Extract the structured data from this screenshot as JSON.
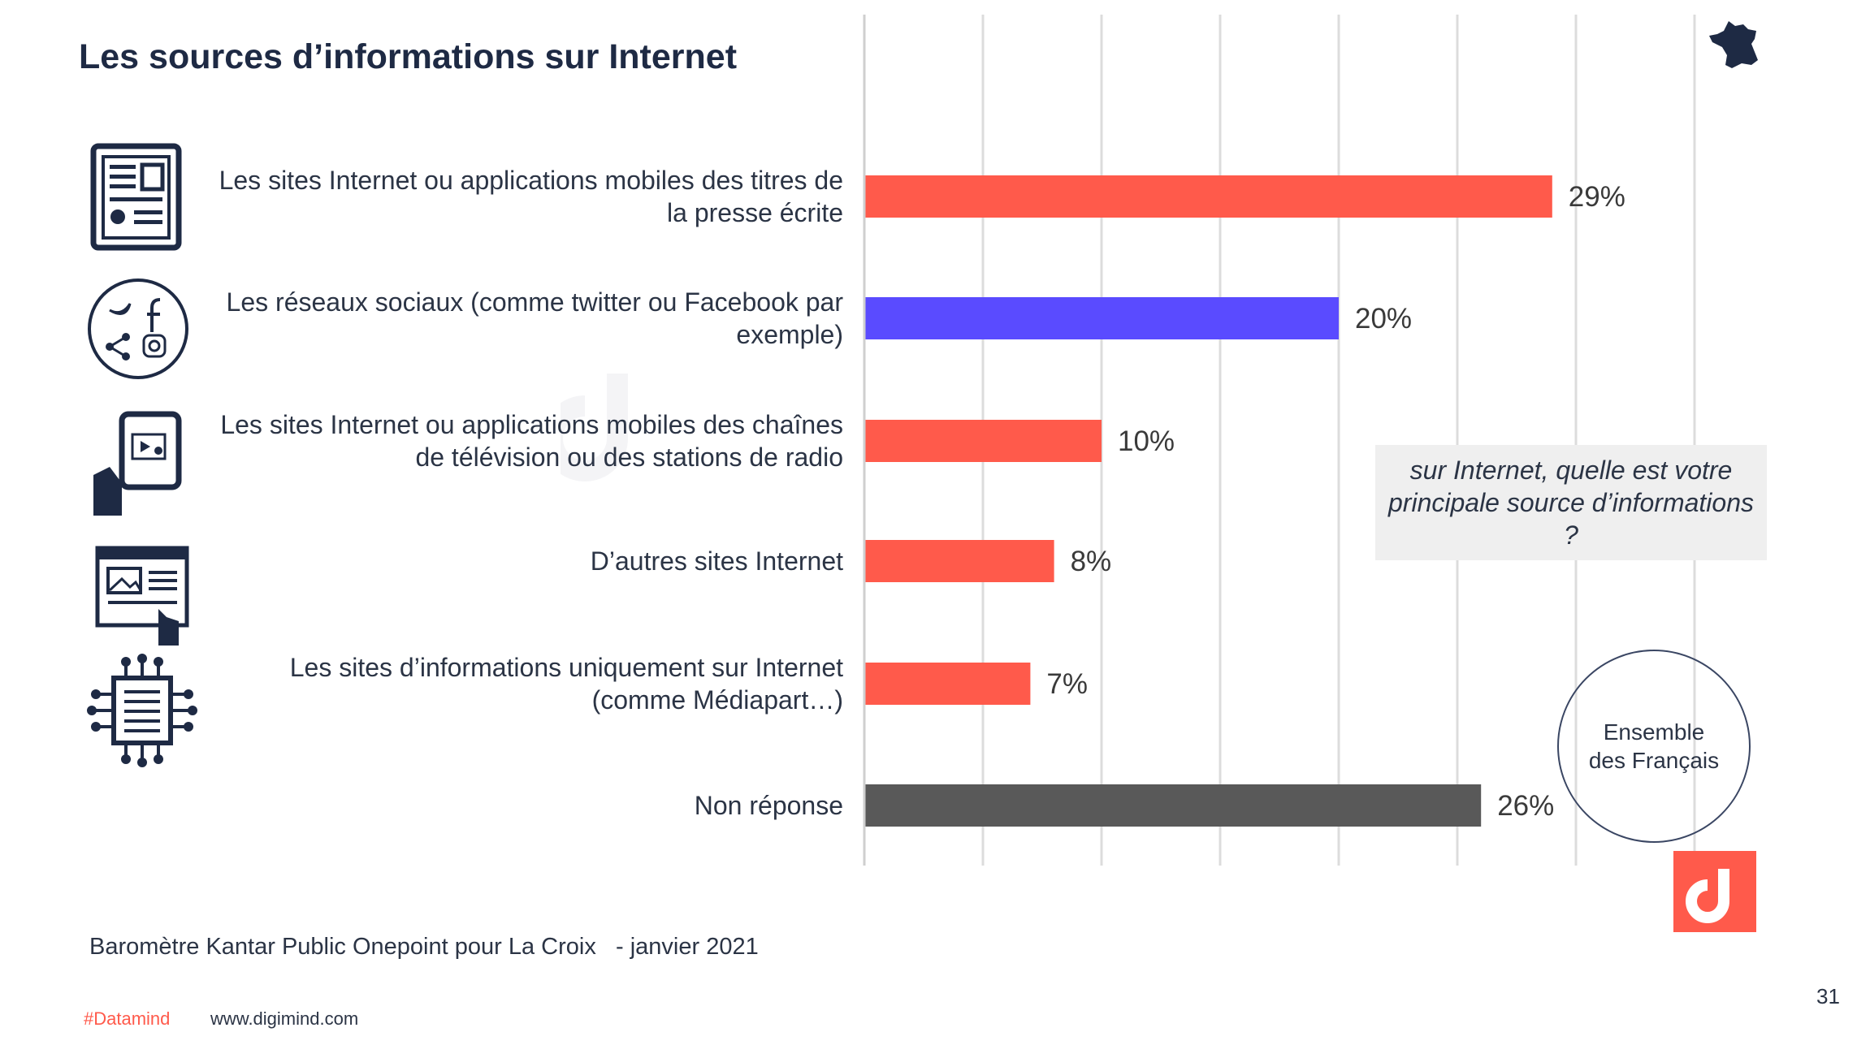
{
  "title": "Les sources d’informations sur Internet",
  "question": "sur Internet, quelle est votre principale source d’informations ?",
  "population": "Ensemble des Français",
  "source": "Baromètre Kantar Public Onepoint pour La Croix   - janvier 2021",
  "footer": {
    "hashtag": "#Datamind",
    "website": "www.digimind.com"
  },
  "page_number": "31",
  "watermark": "digimind",
  "colors": {
    "accent": "#ff5a4b",
    "highlight": "#5a4bff",
    "neutral": "#595959",
    "dark": "#1e2a44",
    "grid": "#dcdcdc"
  },
  "icons": [
    "newspaper-tablet-icon",
    "social-network-icon",
    "mobile-video-icon",
    "website-icon",
    "digital-news-chip-icon"
  ],
  "chart_data": {
    "type": "bar",
    "orientation": "horizontal",
    "categories": [
      "Les sites Internet ou applications mobiles des titres de la presse écrite",
      "Les réseaux sociaux (comme twitter ou Facebook par exemple)",
      "Les sites Internet ou applications mobiles des chaînes de télévision ou des stations de radio",
      "D’autres sites Internet",
      "Les sites d’informations uniquement sur Internet (comme Médiapart…)",
      "Non réponse"
    ],
    "values": [
      29,
      20,
      10,
      8,
      7,
      26
    ],
    "data_labels": [
      "29%",
      "20%",
      "10%",
      "8%",
      "7%",
      "26%"
    ],
    "bar_colors": [
      "#ff5a4b",
      "#5a4bff",
      "#ff5a4b",
      "#ff5a4b",
      "#ff5a4b",
      "#595959"
    ],
    "xlim": [
      0,
      35
    ],
    "grid": true,
    "grid_step": 5
  }
}
